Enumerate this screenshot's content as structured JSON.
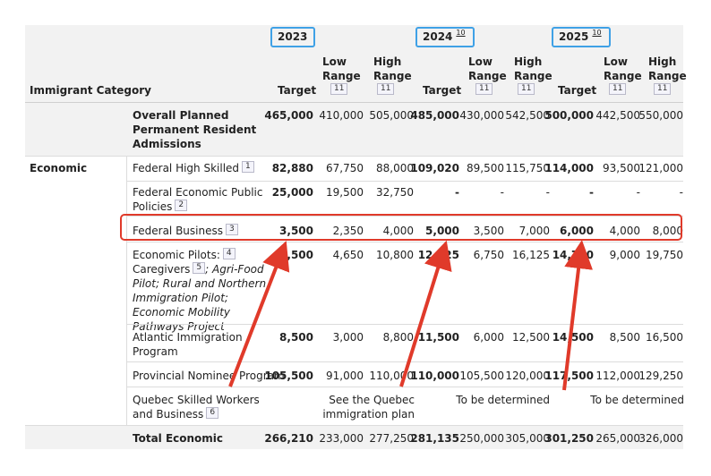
{
  "header": {
    "category_label": "Immigrant Category",
    "years": [
      {
        "label": "2023",
        "footnote": ""
      },
      {
        "label": "2024",
        "footnote": "10"
      },
      {
        "label": "2025",
        "footnote": "10"
      }
    ],
    "target_label": "Target",
    "low_label": "Low Range",
    "high_label": "High Range",
    "range_footnote": "11"
  },
  "overall": {
    "label": "Overall Planned Permanent Resident Admissions",
    "values": [
      "465,000",
      "410,000",
      "505,000",
      "485,000",
      "430,000",
      "542,500",
      "500,000",
      "442,500",
      "550,000"
    ]
  },
  "section": {
    "label": "Economic"
  },
  "rows": [
    {
      "label": "Federal High Skilled",
      "fn": "1",
      "values": [
        "82,880",
        "67,750",
        "88,000",
        "109,020",
        "89,500",
        "115,750",
        "114,000",
        "93,500",
        "121,000"
      ]
    },
    {
      "label": "Federal Economic Public Policies",
      "fn": "2",
      "values": [
        "25,000",
        "19,500",
        "32,750",
        "-",
        "-",
        "-",
        "-",
        "-",
        "-"
      ]
    },
    {
      "label": "Federal Business",
      "fn": "3",
      "values": [
        "3,500",
        "2,350",
        "4,000",
        "5,000",
        "3,500",
        "7,000",
        "6,000",
        "4,000",
        "8,000"
      ]
    },
    {
      "label": "Economic Pilots:",
      "fn": "4",
      "sub_label": "Caregivers",
      "sub_fn": "5",
      "rest_text": "; Agri-Food Pilot; Rural and Northern Immigration Pilot; Economic Mobility Pathways Project",
      "values": [
        "8,500",
        "4,650",
        "10,800",
        "12,125",
        "6,750",
        "16,125",
        "14,750",
        "9,000",
        "19,750"
      ]
    },
    {
      "label": "Atlantic Immigration Program",
      "values": [
        "8,500",
        "3,000",
        "8,800",
        "11,500",
        "6,000",
        "12,500",
        "14,500",
        "8,500",
        "16,500"
      ]
    },
    {
      "label": "Provincial Nominee Program",
      "values": [
        "105,500",
        "91,000",
        "110,000",
        "110,000",
        "105,500",
        "120,000",
        "117,500",
        "112,000",
        "129,250"
      ]
    },
    {
      "label": "Quebec Skilled Workers and Business",
      "fn": "6",
      "note_2023": "See the Quebec immigration plan",
      "note_2024": "To be determined",
      "note_2025": "To be determined"
    }
  ],
  "total": {
    "label": "Total Economic",
    "values": [
      "266,210",
      "233,000",
      "277,250",
      "281,135",
      "250,000",
      "305,000",
      "301,250",
      "265,000",
      "326,000"
    ]
  },
  "annotation_colors": {
    "highlight_box": "#e03a2a",
    "arrow": "#e03a2a",
    "year_box": "#3fa1e6"
  }
}
